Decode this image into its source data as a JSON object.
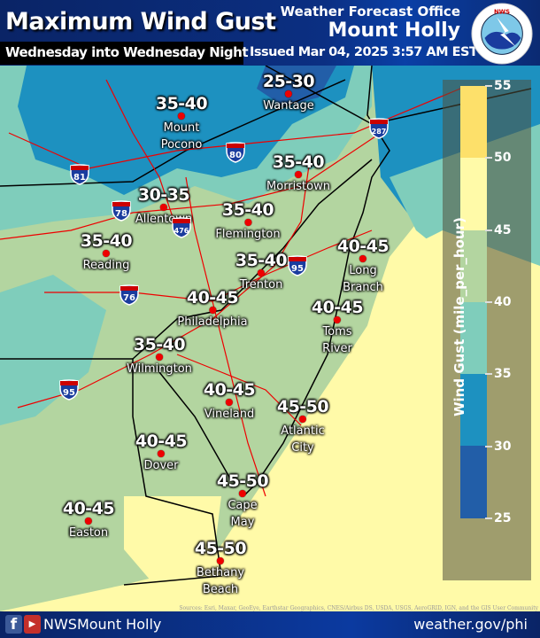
{
  "header": {
    "title": "Maximum Wind Gust",
    "subtitle": "Wednesday into Wednesday Night",
    "issued": "Issued Mar 04, 2025 3:57 AM EST",
    "office_line1": "Weather Forecast Office",
    "office_line2": "Mount Holly",
    "logo_text": "NATIONAL WEATHER SERVICE"
  },
  "legend": {
    "title": "Wind Gust (mile_per_hour)",
    "ticks": [
      "55",
      "50",
      "45",
      "40",
      "35",
      "30",
      "25"
    ],
    "bins": [
      {
        "range": "50-55",
        "color": "#fde06a"
      },
      {
        "range": "45-50",
        "color": "#fffaa8"
      },
      {
        "range": "40-45",
        "color": "#b3d5a0"
      },
      {
        "range": "35-40",
        "color": "#7fcdbb"
      },
      {
        "range": "30-35",
        "color": "#1d91c0"
      },
      {
        "range": "25-30",
        "color": "#225ea8"
      }
    ]
  },
  "cities": [
    {
      "range": "25-30",
      "name": [
        "Wantage"
      ]
    },
    {
      "range": "35-40",
      "name": [
        "Mount",
        "Pocono"
      ]
    },
    {
      "range": "35-40",
      "name": [
        "Morristown"
      ]
    },
    {
      "range": "30-35",
      "name": [
        "Allentown"
      ]
    },
    {
      "range": "35-40",
      "name": [
        "Flemington"
      ]
    },
    {
      "range": "35-40",
      "name": [
        "Reading"
      ]
    },
    {
      "range": "40-45",
      "name": [
        "Long",
        "Branch"
      ]
    },
    {
      "range": "35-40",
      "name": [
        "Trenton"
      ]
    },
    {
      "range": "40-45",
      "name": [
        "Philadelphia"
      ]
    },
    {
      "range": "40-45",
      "name": [
        "Toms",
        "River"
      ]
    },
    {
      "range": "35-40",
      "name": [
        "Wilmington"
      ]
    },
    {
      "range": "40-45",
      "name": [
        "Vineland"
      ]
    },
    {
      "range": "45-50",
      "name": [
        "Atlantic",
        "City"
      ]
    },
    {
      "range": "40-45",
      "name": [
        "Dover"
      ]
    },
    {
      "range": "45-50",
      "name": [
        "Cape",
        "May"
      ]
    },
    {
      "range": "40-45",
      "name": [
        "Easton"
      ]
    },
    {
      "range": "45-50",
      "name": [
        "Bethany",
        "Beach"
      ]
    }
  ],
  "interstates": [
    "287",
    "80",
    "81",
    "78",
    "476",
    "95",
    "76",
    "95"
  ],
  "attribution": "Sources: Esri, Maxar, GeoEye, Earthstar Geographics, CNES/Airbus DS, USDA, USGS, AeroGRID, IGN, and the GIS User Community",
  "footer": {
    "social_handle": "NWSMount Holly",
    "website": "weather.gov/phi",
    "facebook_icon": "f",
    "youtube_icon": "▶"
  }
}
